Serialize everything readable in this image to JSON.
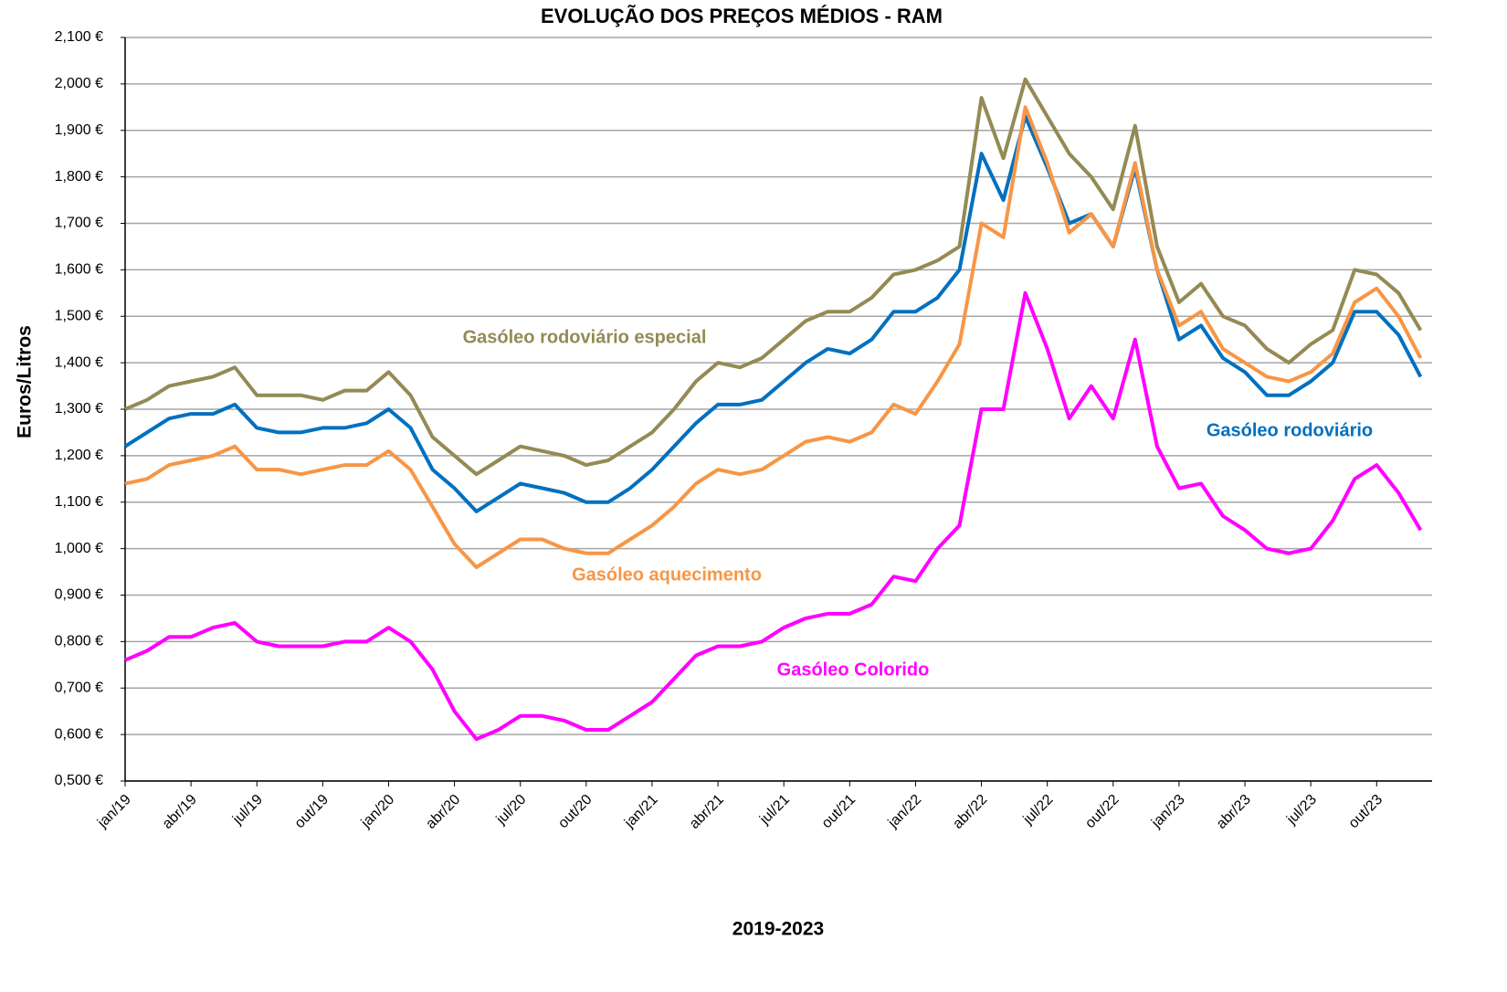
{
  "chart_data": {
    "type": "line",
    "title": "EVOLUÇÃO DOS PREÇOS MÉDIOS - RAM",
    "y_label": "Euros/Litros",
    "x_label": "2019-2023",
    "categories": [
      "jan/19",
      null,
      null,
      "abr/19",
      null,
      null,
      "jul/19",
      null,
      null,
      "out/19",
      null,
      null,
      "jan/20",
      null,
      null,
      "abr/20",
      null,
      null,
      "jul/20",
      null,
      null,
      "out/20",
      null,
      null,
      "jan/21",
      null,
      null,
      "abr/21",
      null,
      null,
      "jul/21",
      null,
      null,
      "out/21",
      null,
      null,
      "jan/22",
      null,
      null,
      "abr/22",
      null,
      null,
      "jul/22",
      null,
      null,
      "out/22",
      null,
      null,
      "jan/23",
      null,
      null,
      "abr/23",
      null,
      null,
      "jul/23",
      null,
      null,
      "out/23",
      null,
      null
    ],
    "ylim": [
      0.5,
      2.1
    ],
    "yticks": [
      {
        "value": 0.5,
        "label": "0,500 €"
      },
      {
        "value": 0.6,
        "label": "0,600 €"
      },
      {
        "value": 0.7,
        "label": "0,700 €"
      },
      {
        "value": 0.8,
        "label": "0,800 €"
      },
      {
        "value": 0.9,
        "label": "0,900 €"
      },
      {
        "value": 1.0,
        "label": "1,000 €"
      },
      {
        "value": 1.1,
        "label": "1,100 €"
      },
      {
        "value": 1.2,
        "label": "1,200 €"
      },
      {
        "value": 1.3,
        "label": "1,300 €"
      },
      {
        "value": 1.4,
        "label": "1,400 €"
      },
      {
        "value": 1.5,
        "label": "1,500 €"
      },
      {
        "value": 1.6,
        "label": "1,600 €"
      },
      {
        "value": 1.7,
        "label": "1,700 €"
      },
      {
        "value": 1.8,
        "label": "1,800 €"
      },
      {
        "value": 1.9,
        "label": "1,900 €"
      },
      {
        "value": 2.0,
        "label": "2,000 €"
      },
      {
        "value": 2.1,
        "label": "2,100 €"
      }
    ],
    "grid": true,
    "series": [
      {
        "name": "Gasóleo rodoviário especial",
        "color": "#948a54",
        "values": [
          1.3,
          1.32,
          1.35,
          1.36,
          1.37,
          1.39,
          1.33,
          1.33,
          1.33,
          1.32,
          1.34,
          1.34,
          1.38,
          1.33,
          1.24,
          1.2,
          1.16,
          1.19,
          1.22,
          1.21,
          1.2,
          1.18,
          1.19,
          1.22,
          1.25,
          1.3,
          1.36,
          1.4,
          1.39,
          1.41,
          1.45,
          1.49,
          1.51,
          1.51,
          1.54,
          1.59,
          1.6,
          1.62,
          1.65,
          1.97,
          1.84,
          2.01,
          1.93,
          1.85,
          1.8,
          1.73,
          1.91,
          1.65,
          1.53,
          1.57,
          1.5,
          1.48,
          1.43,
          1.4,
          1.44,
          1.47,
          1.6,
          1.59,
          1.55,
          1.47
        ]
      },
      {
        "name": "Gasóleo rodoviário",
        "color": "#0070c0",
        "values": [
          1.22,
          1.25,
          1.28,
          1.29,
          1.29,
          1.31,
          1.26,
          1.25,
          1.25,
          1.26,
          1.26,
          1.27,
          1.3,
          1.26,
          1.17,
          1.13,
          1.08,
          1.11,
          1.14,
          1.13,
          1.12,
          1.1,
          1.1,
          1.13,
          1.17,
          1.22,
          1.27,
          1.31,
          1.31,
          1.32,
          1.36,
          1.4,
          1.43,
          1.42,
          1.45,
          1.51,
          1.51,
          1.54,
          1.6,
          1.85,
          1.75,
          1.93,
          1.82,
          1.7,
          1.72,
          1.65,
          1.82,
          1.6,
          1.45,
          1.48,
          1.41,
          1.38,
          1.33,
          1.33,
          1.36,
          1.4,
          1.51,
          1.51,
          1.46,
          1.37
        ]
      },
      {
        "name": "Gasóleo aquecimento",
        "color": "#f79646",
        "values": [
          1.14,
          1.15,
          1.18,
          1.19,
          1.2,
          1.22,
          1.17,
          1.17,
          1.16,
          1.17,
          1.18,
          1.18,
          1.21,
          1.17,
          1.09,
          1.01,
          0.96,
          0.99,
          1.02,
          1.02,
          1.0,
          0.99,
          0.99,
          1.02,
          1.05,
          1.09,
          1.14,
          1.17,
          1.16,
          1.17,
          1.2,
          1.23,
          1.24,
          1.23,
          1.25,
          1.31,
          1.29,
          1.36,
          1.44,
          1.7,
          1.67,
          1.95,
          1.83,
          1.68,
          1.72,
          1.65,
          1.83,
          1.6,
          1.48,
          1.51,
          1.43,
          1.4,
          1.37,
          1.36,
          1.38,
          1.42,
          1.53,
          1.56,
          1.5,
          1.41
        ]
      },
      {
        "name": "Gasóleo Colorido",
        "color": "#ff00ff",
        "values": [
          0.76,
          0.78,
          0.81,
          0.81,
          0.83,
          0.84,
          0.8,
          0.79,
          0.79,
          0.79,
          0.8,
          0.8,
          0.83,
          0.8,
          0.74,
          0.65,
          0.59,
          0.61,
          0.64,
          0.64,
          0.63,
          0.61,
          0.61,
          0.64,
          0.67,
          0.72,
          0.77,
          0.79,
          0.79,
          0.8,
          0.83,
          0.85,
          0.86,
          0.86,
          0.88,
          0.94,
          0.93,
          1.0,
          1.05,
          1.3,
          1.3,
          1.55,
          1.43,
          1.28,
          1.35,
          1.28,
          1.45,
          1.22,
          1.13,
          1.14,
          1.07,
          1.04,
          1.0,
          0.99,
          1.0,
          1.06,
          1.15,
          1.18,
          1.12,
          1.04
        ]
      }
    ]
  }
}
